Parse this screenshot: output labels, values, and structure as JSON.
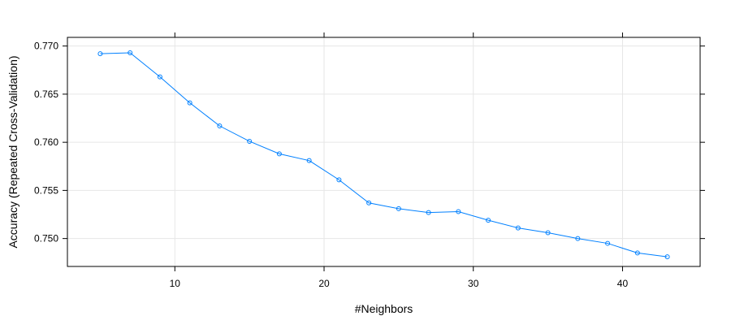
{
  "chart_data": {
    "type": "line",
    "title": "",
    "xlabel": "#Neighbors",
    "ylabel": "Accuracy (Repeated Cross-Validation)",
    "xlim": [
      2.8,
      45.2
    ],
    "ylim": [
      0.7471,
      0.7709
    ],
    "x_ticks": [
      10,
      20,
      30,
      40
    ],
    "x_tick_labels": [
      "10",
      "20",
      "30",
      "40"
    ],
    "y_ticks": [
      0.75,
      0.755,
      0.76,
      0.765,
      0.77
    ],
    "y_tick_labels": [
      "0.750",
      "0.755",
      "0.760",
      "0.765",
      "0.770"
    ],
    "grid": true,
    "series": [
      {
        "x": [
          5,
          7,
          9,
          11,
          13,
          15,
          17,
          19,
          21,
          23,
          25,
          27,
          29,
          31,
          33,
          35,
          37,
          39,
          41,
          43
        ],
        "values": [
          0.7692,
          0.7693,
          0.7668,
          0.7641,
          0.7617,
          0.7601,
          0.7588,
          0.7581,
          0.7561,
          0.7537,
          0.7531,
          0.7527,
          0.7528,
          0.7519,
          0.7511,
          0.7506,
          0.75,
          0.7495,
          0.7485,
          0.7481
        ],
        "color": "#0080ff",
        "marker": "circle"
      }
    ]
  },
  "colors": {
    "series": "#0080ff",
    "grid": "#e6e6e6",
    "axis": "#000000"
  }
}
